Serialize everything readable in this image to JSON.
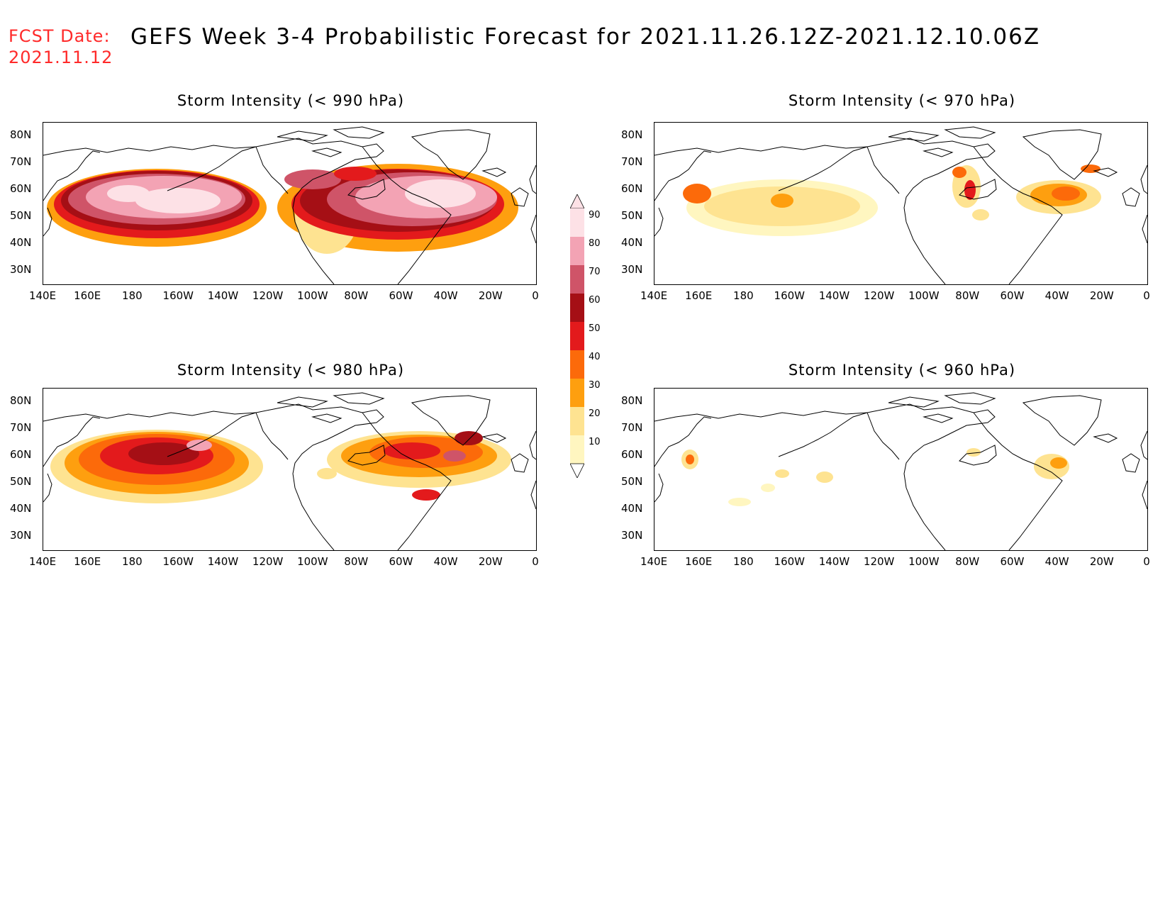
{
  "header": {
    "fcst_label": "FCST Date:",
    "fcst_date": "2021.11.12",
    "title": "GEFS Week 3-4 Probabilistic Forecast for 2021.11.26.12Z-2021.12.10.06Z"
  },
  "axes": {
    "lon_labels": [
      "140E",
      "160E",
      "180",
      "160W",
      "140W",
      "120W",
      "100W",
      "80W",
      "60W",
      "40W",
      "20W",
      "0"
    ],
    "lat_labels": [
      "80N",
      "70N",
      "60N",
      "50N",
      "40N",
      "30N"
    ]
  },
  "panels": [
    {
      "id": "p990",
      "title": "Storm Intensity (< 990 hPa)"
    },
    {
      "id": "p970",
      "title": "Storm Intensity (< 970 hPa)"
    },
    {
      "id": "p980",
      "title": "Storm Intensity (< 980 hPa)"
    },
    {
      "id": "p960",
      "title": "Storm Intensity (< 960 hPa)"
    }
  ],
  "colorbar": {
    "levels": [
      "90",
      "80",
      "70",
      "60",
      "50",
      "40",
      "30",
      "20",
      "10"
    ],
    "colors": {
      "90": "#fde1e6",
      "80": "#f3a3b4",
      "70": "#cf5468",
      "60": "#a50f15",
      "50": "#e31a1c",
      "40": "#fc6a0a",
      "30": "#fe9f0f",
      "20": "#fee391",
      "10": "#fff6c0"
    }
  }
}
